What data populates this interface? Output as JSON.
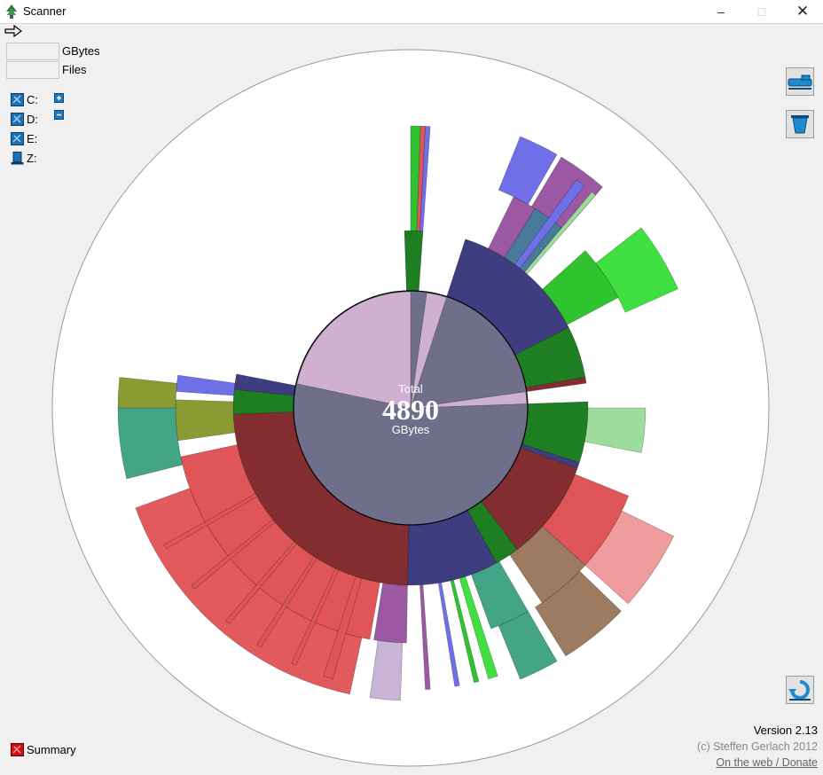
{
  "window": {
    "title": "Scanner"
  },
  "stats": {
    "size_value": "",
    "size_unit": "GBytes",
    "files_value": "",
    "files_unit": "Files"
  },
  "drives": [
    {
      "label": "C:",
      "icon": "network-drive-icon"
    },
    {
      "label": "D:",
      "icon": "network-drive-icon"
    },
    {
      "label": "E:",
      "icon": "network-drive-icon"
    },
    {
      "label": "Z:",
      "icon": "computer-drive-icon"
    }
  ],
  "center": {
    "caption": "Total",
    "value": "4890",
    "unit": "GBytes"
  },
  "footer": {
    "version": "Version 2.13",
    "copyright": "(c) Steffen Gerlach 2012",
    "link": "On the web / Donate",
    "summary": "Summary"
  },
  "colors": {
    "center_lilac": "#cfb0d0",
    "center_slate": "#6f6f8b",
    "red": "#e05557",
    "dark_red": "#832d30",
    "navy": "#3e3d7f",
    "green": "#2fc42f",
    "dark_green": "#1e7e22",
    "purple": "#9c58a2",
    "teal": "#43a586",
    "olive": "#8a9b34",
    "brown": "#9c7b60",
    "blue": "#6f70e8"
  }
}
